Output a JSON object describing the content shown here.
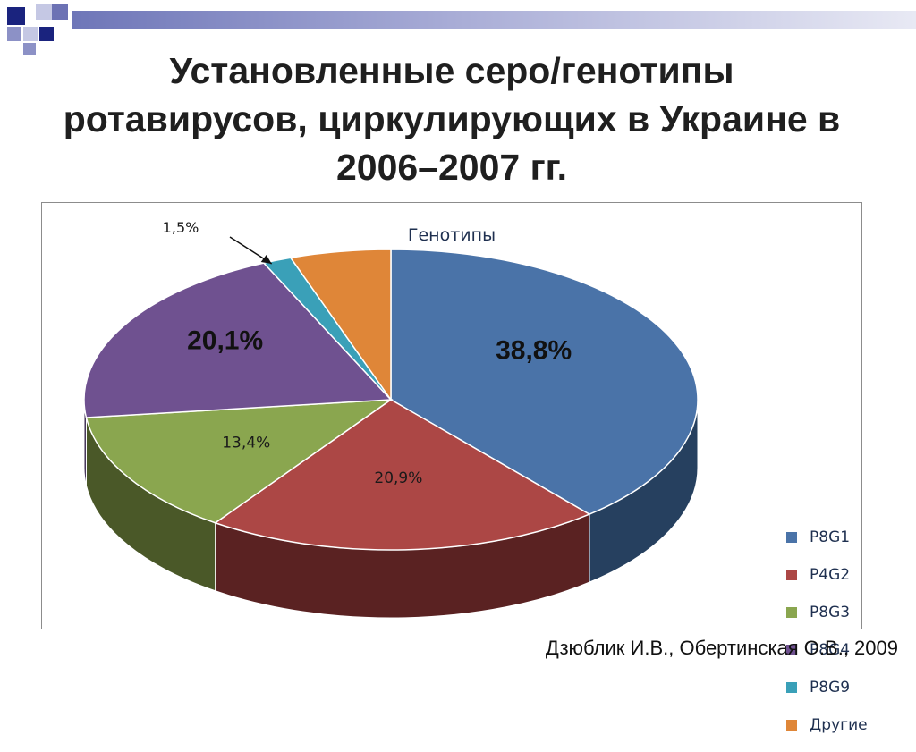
{
  "slide": {
    "title": "Установленные серо/генотипы ротавирусов, циркулирующих в Украине в  2006–2007 гг.",
    "citation": "Дзюблик И.В., Обертинская О.В., 2009"
  },
  "chart_data": {
    "type": "pie",
    "style": "3d",
    "title": "Генотипы",
    "categories": [
      "P8G1",
      "P4G2",
      "P8G3",
      "P8G4",
      "P8G9",
      "Другие"
    ],
    "values": [
      38.8,
      20.9,
      13.4,
      20.1,
      1.5,
      5.3
    ],
    "data_labels": [
      "38,8%",
      "20,9%",
      "13,4%",
      "20,1%",
      "1,5%",
      ""
    ],
    "colors": [
      "#4a73a8",
      "#ac4745",
      "#8aa64f",
      "#6f5190",
      "#3aa0b8",
      "#df8638"
    ],
    "side_colors": [
      "#26405f",
      "#5a2222",
      "#4a5828",
      "#3c2c52",
      "#1e5a68",
      "#7a4a1c"
    ],
    "legend_position": "right"
  }
}
